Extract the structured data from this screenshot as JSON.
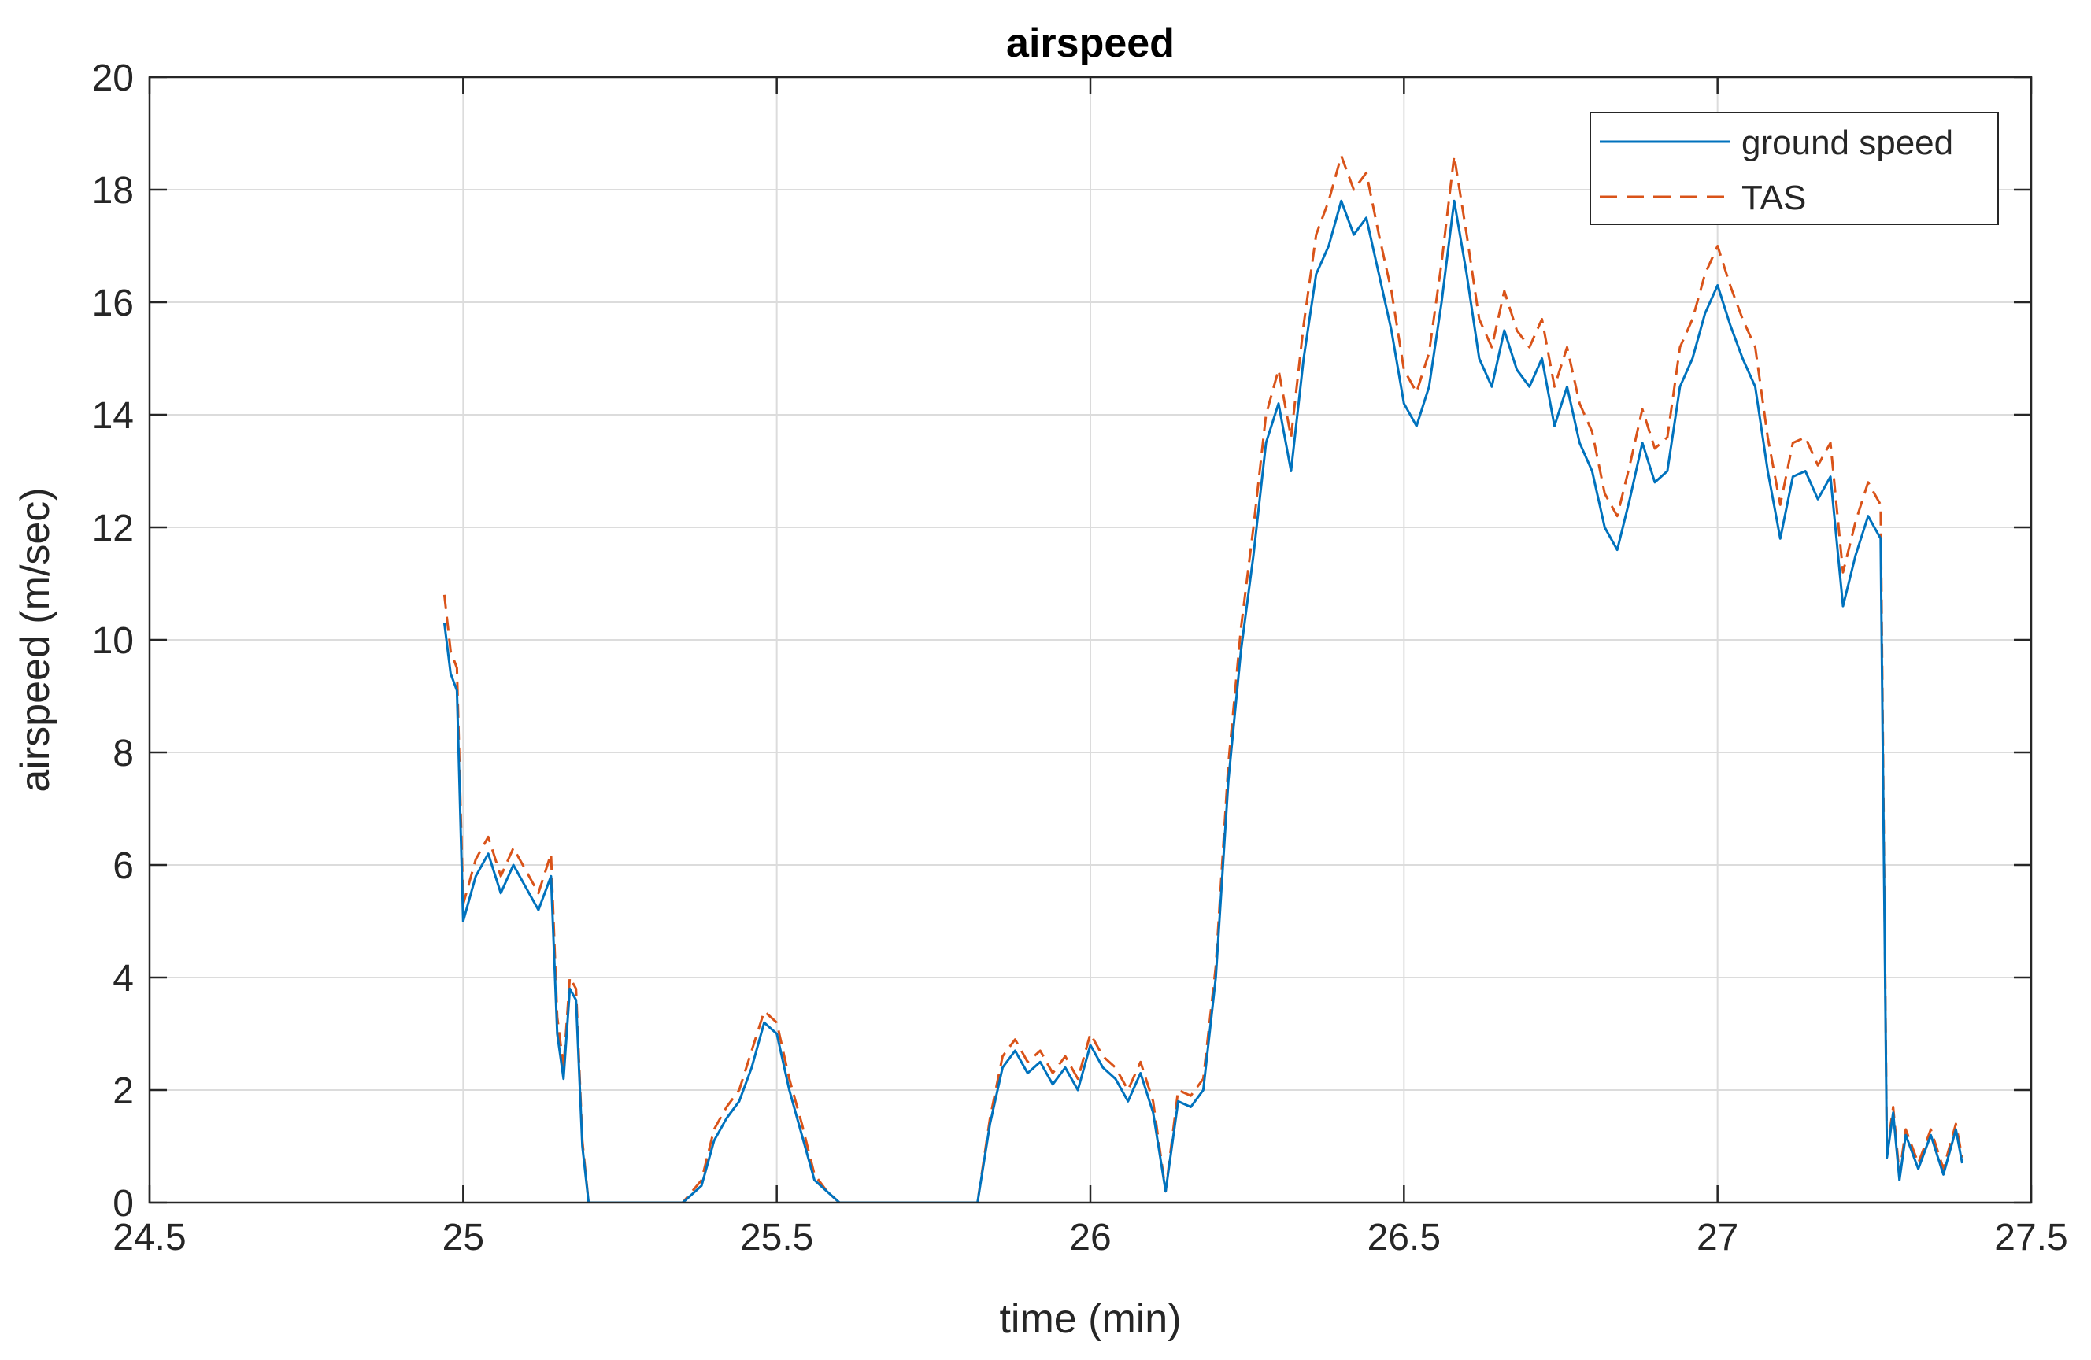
{
  "chart_data": {
    "type": "line",
    "title": "airspeed",
    "xlabel": "time (min)",
    "ylabel": "airspeed (m/sec)",
    "xlim": [
      24.5,
      27.5
    ],
    "ylim": [
      0,
      20
    ],
    "xticks": [
      24.5,
      25,
      25.5,
      26,
      26.5,
      27,
      27.5
    ],
    "xtick_labels": [
      "24.5",
      "25",
      "25.5",
      "26",
      "26.5",
      "27",
      "27.5"
    ],
    "yticks": [
      0,
      2,
      4,
      6,
      8,
      10,
      12,
      14,
      16,
      18,
      20
    ],
    "ytick_labels": [
      "0",
      "2",
      "4",
      "6",
      "8",
      "10",
      "12",
      "14",
      "16",
      "18",
      "20"
    ],
    "grid": true,
    "legend_position": "top-right",
    "series": [
      {
        "name": "ground speed",
        "color": "#0072bd",
        "line_style": "solid",
        "x": [
          24.97,
          24.98,
          24.99,
          25.0,
          25.02,
          25.04,
          25.06,
          25.08,
          25.1,
          25.12,
          25.14,
          25.15,
          25.16,
          25.17,
          25.18,
          25.19,
          25.2,
          25.3,
          25.35,
          25.38,
          25.4,
          25.42,
          25.44,
          25.46,
          25.48,
          25.5,
          25.52,
          25.54,
          25.56,
          25.58,
          25.6,
          25.65,
          25.7,
          25.82,
          25.84,
          25.86,
          25.88,
          25.9,
          25.92,
          25.94,
          25.96,
          25.98,
          26.0,
          26.02,
          26.04,
          26.06,
          26.08,
          26.1,
          26.12,
          26.14,
          26.16,
          26.18,
          26.2,
          26.22,
          26.24,
          26.26,
          26.28,
          26.3,
          26.32,
          26.34,
          26.36,
          26.38,
          26.4,
          26.42,
          26.44,
          26.46,
          26.48,
          26.5,
          26.52,
          26.54,
          26.56,
          26.58,
          26.6,
          26.62,
          26.64,
          26.66,
          26.68,
          26.7,
          26.72,
          26.74,
          26.76,
          26.78,
          26.8,
          26.82,
          26.84,
          26.86,
          26.88,
          26.9,
          26.92,
          26.94,
          26.96,
          26.98,
          27.0,
          27.02,
          27.04,
          27.06,
          27.08,
          27.1,
          27.12,
          27.14,
          27.16,
          27.18,
          27.2,
          27.22,
          27.24,
          27.26,
          27.27,
          27.28,
          27.29,
          27.3,
          27.32,
          27.34,
          27.36,
          27.38,
          27.39
        ],
        "y": [
          10.3,
          9.4,
          9.1,
          5.0,
          5.8,
          6.2,
          5.5,
          6.0,
          5.6,
          5.2,
          5.8,
          3.0,
          2.2,
          3.8,
          3.6,
          1.0,
          0.0,
          0.0,
          0.0,
          0.3,
          1.1,
          1.5,
          1.8,
          2.4,
          3.2,
          3.0,
          2.0,
          1.2,
          0.4,
          0.2,
          0.0,
          0.0,
          0.0,
          0.0,
          1.4,
          2.4,
          2.7,
          2.3,
          2.5,
          2.1,
          2.4,
          2.0,
          2.8,
          2.4,
          2.2,
          1.8,
          2.3,
          1.6,
          0.2,
          1.8,
          1.7,
          2.0,
          4.0,
          7.5,
          9.8,
          11.5,
          13.5,
          14.2,
          13.0,
          15.0,
          16.5,
          17.0,
          17.8,
          17.2,
          17.5,
          16.5,
          15.5,
          14.2,
          13.8,
          14.5,
          16.0,
          17.8,
          16.5,
          15.0,
          14.5,
          15.5,
          14.8,
          14.5,
          15.0,
          13.8,
          14.5,
          13.5,
          13.0,
          12.0,
          11.6,
          12.5,
          13.5,
          12.8,
          13.0,
          14.5,
          15.0,
          15.8,
          16.3,
          15.6,
          15.0,
          14.5,
          13.0,
          11.8,
          12.9,
          13.0,
          12.5,
          12.9,
          10.6,
          11.5,
          12.2,
          11.8,
          0.8,
          1.6,
          0.4,
          1.2,
          0.6,
          1.2,
          0.5,
          1.3,
          0.7
        ]
      },
      {
        "name": "TAS",
        "color": "#d95319",
        "line_style": "dashed",
        "x": [
          24.97,
          24.98,
          24.99,
          25.0,
          25.02,
          25.04,
          25.06,
          25.08,
          25.1,
          25.12,
          25.14,
          25.15,
          25.16,
          25.17,
          25.18,
          25.19,
          25.2,
          25.3,
          25.35,
          25.38,
          25.4,
          25.42,
          25.44,
          25.46,
          25.48,
          25.5,
          25.52,
          25.54,
          25.56,
          25.58,
          25.6,
          25.65,
          25.7,
          25.82,
          25.84,
          25.86,
          25.88,
          25.9,
          25.92,
          25.94,
          25.96,
          25.98,
          26.0,
          26.02,
          26.04,
          26.06,
          26.08,
          26.1,
          26.12,
          26.14,
          26.16,
          26.18,
          26.2,
          26.22,
          26.24,
          26.26,
          26.28,
          26.3,
          26.32,
          26.34,
          26.36,
          26.38,
          26.4,
          26.42,
          26.44,
          26.46,
          26.48,
          26.5,
          26.52,
          26.54,
          26.56,
          26.58,
          26.6,
          26.62,
          26.64,
          26.66,
          26.68,
          26.7,
          26.72,
          26.74,
          26.76,
          26.78,
          26.8,
          26.82,
          26.84,
          26.86,
          26.88,
          26.9,
          26.92,
          26.94,
          26.96,
          26.98,
          27.0,
          27.02,
          27.04,
          27.06,
          27.08,
          27.1,
          27.12,
          27.14,
          27.16,
          27.18,
          27.2,
          27.22,
          27.24,
          27.26,
          27.27,
          27.28,
          27.29,
          27.3,
          27.32,
          27.34,
          27.36,
          27.38,
          27.39
        ],
        "y": [
          10.8,
          9.8,
          9.5,
          5.3,
          6.1,
          6.5,
          5.8,
          6.3,
          5.9,
          5.5,
          6.2,
          3.3,
          2.4,
          4.0,
          3.8,
          1.1,
          0.0,
          0.0,
          0.0,
          0.4,
          1.3,
          1.7,
          2.0,
          2.7,
          3.4,
          3.2,
          2.2,
          1.4,
          0.5,
          0.2,
          0.0,
          0.0,
          0.0,
          0.0,
          1.5,
          2.6,
          2.9,
          2.5,
          2.7,
          2.3,
          2.6,
          2.2,
          3.0,
          2.6,
          2.4,
          2.0,
          2.5,
          1.8,
          0.2,
          2.0,
          1.9,
          2.2,
          4.2,
          7.8,
          10.2,
          12.0,
          14.0,
          14.8,
          13.6,
          15.6,
          17.2,
          17.8,
          18.6,
          18.0,
          18.3,
          17.2,
          16.2,
          14.8,
          14.4,
          15.1,
          16.7,
          18.6,
          17.2,
          15.7,
          15.2,
          16.2,
          15.5,
          15.2,
          15.7,
          14.5,
          15.2,
          14.2,
          13.7,
          12.6,
          12.2,
          13.1,
          14.1,
          13.4,
          13.6,
          15.2,
          15.7,
          16.5,
          17.0,
          16.3,
          15.7,
          15.2,
          13.6,
          12.4,
          13.5,
          13.6,
          13.1,
          13.5,
          11.2,
          12.1,
          12.8,
          12.4,
          0.9,
          1.7,
          0.5,
          1.3,
          0.7,
          1.3,
          0.6,
          1.4,
          0.8
        ]
      }
    ]
  }
}
